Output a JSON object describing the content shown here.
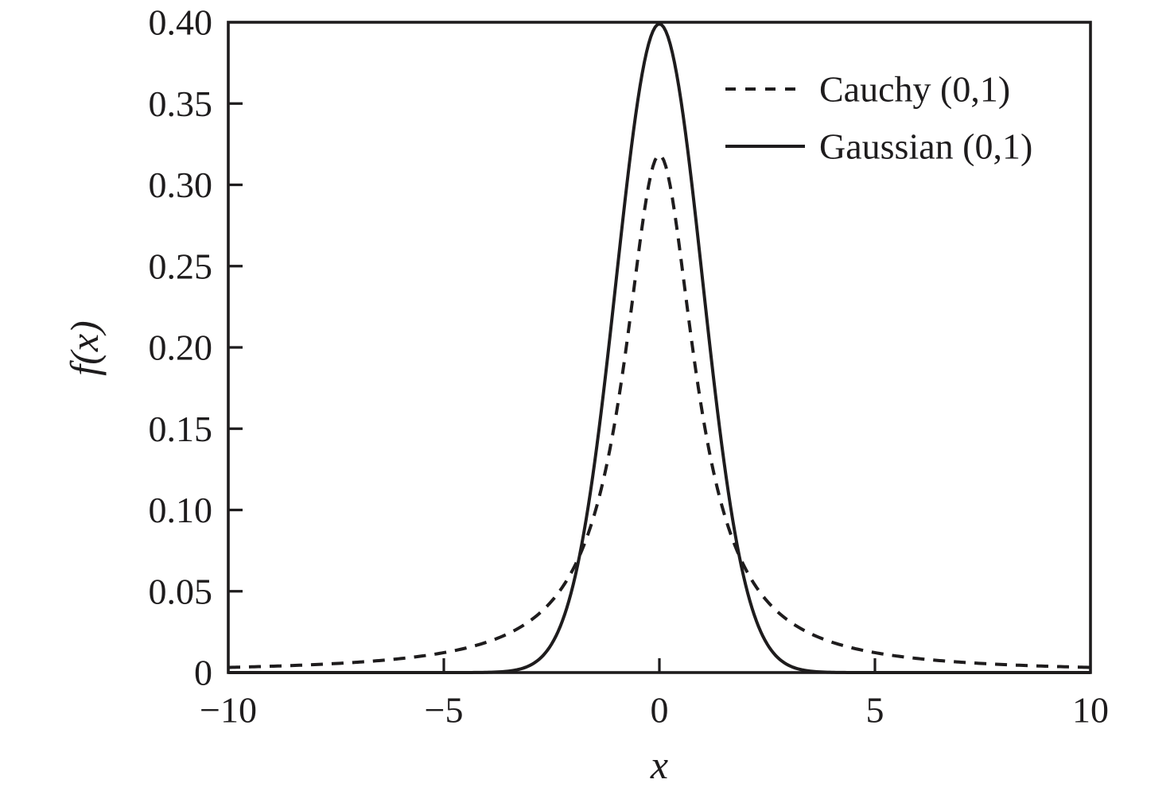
{
  "figure": {
    "background": "#ffffff",
    "ink_color": "#1e1c1d"
  },
  "axes": {
    "xlabel": "x",
    "ylabel": "f(x)",
    "x_tick_labels": [
      {
        "value": -10,
        "label": "−10"
      },
      {
        "value": -5,
        "label": "−5"
      },
      {
        "value": 0,
        "label": "0"
      },
      {
        "value": 5,
        "label": "5"
      },
      {
        "value": 10,
        "label": "10"
      }
    ],
    "x_tick_marks": [
      -5,
      0,
      5
    ],
    "y_tick_labels": [
      {
        "value": 0.4,
        "label": "0.40"
      },
      {
        "value": 0.35,
        "label": "0.35"
      },
      {
        "value": 0.3,
        "label": "0.30"
      },
      {
        "value": 0.25,
        "label": "0.25"
      },
      {
        "value": 0.2,
        "label": "0.20"
      },
      {
        "value": 0.15,
        "label": "0.15"
      },
      {
        "value": 0.1,
        "label": "0.10"
      },
      {
        "value": 0.05,
        "label": "0.05"
      },
      {
        "value": 0,
        "label": "0"
      }
    ],
    "y_tick_marks": [
      0.05,
      0.1,
      0.15,
      0.2,
      0.25,
      0.3,
      0.35
    ]
  },
  "legend": {
    "items": [
      {
        "label": "Cauchy (0,1)",
        "style": "dashed"
      },
      {
        "label": "Gaussian (0,1)",
        "style": "solid"
      }
    ]
  },
  "chart_data": {
    "type": "line",
    "title": "",
    "xlabel": "x",
    "ylabel": "f(x)",
    "xlim": [
      -10,
      10
    ],
    "ylim": [
      0,
      0.4
    ],
    "grid": false,
    "legend_position": "upper right",
    "series": [
      {
        "name": "Cauchy (0,1)",
        "line_style": "dashed",
        "color": "#1e1c1d",
        "distribution": "cauchy",
        "x0": 0,
        "gamma": 1,
        "peak_value": 0.3183,
        "x": [
          -10,
          -9,
          -8,
          -7,
          -6,
          -5,
          -4,
          -3,
          -2,
          -1,
          0,
          1,
          2,
          3,
          4,
          5,
          6,
          7,
          8,
          9,
          10
        ],
        "y": [
          0.0032,
          0.0039,
          0.0049,
          0.0064,
          0.0086,
          0.0122,
          0.0187,
          0.0318,
          0.0637,
          0.1592,
          0.3183,
          0.1592,
          0.0637,
          0.0318,
          0.0187,
          0.0122,
          0.0086,
          0.0064,
          0.0049,
          0.0039,
          0.0032
        ]
      },
      {
        "name": "Gaussian (0,1)",
        "line_style": "solid",
        "color": "#1e1c1d",
        "distribution": "gaussian",
        "mu": 0,
        "sigma": 1,
        "peak_value": 0.3989,
        "x": [
          -10,
          -9,
          -8,
          -7,
          -6,
          -5,
          -4,
          -3,
          -2,
          -1,
          0,
          1,
          2,
          3,
          4,
          5,
          6,
          7,
          8,
          9,
          10
        ],
        "y": [
          0,
          0,
          0,
          0,
          0,
          0,
          0.0001,
          0.0044,
          0.054,
          0.242,
          0.3989,
          0.242,
          0.054,
          0.0044,
          0.0001,
          0,
          0,
          0,
          0,
          0,
          0
        ]
      }
    ]
  }
}
